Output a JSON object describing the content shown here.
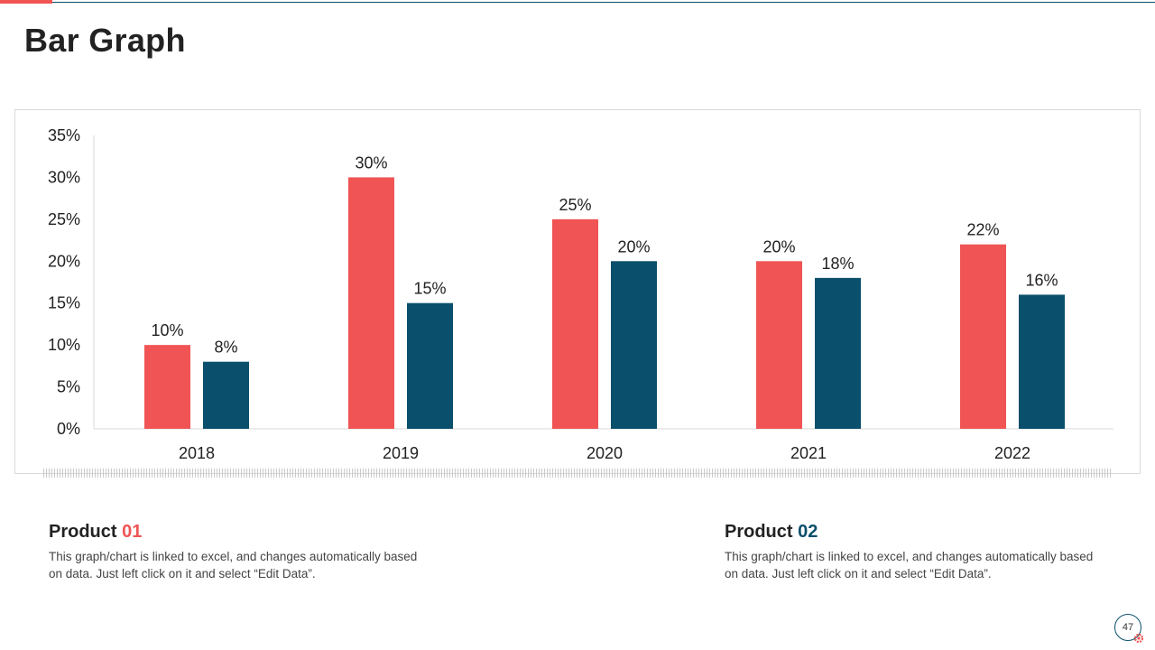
{
  "slide": {
    "title": "Bar Graph",
    "page_number": "47"
  },
  "products": [
    {
      "label": "Product ",
      "number": "01",
      "text": "This graph/chart is linked to excel, and changes automatically based on data. Just left click on it and select “Edit Data”."
    },
    {
      "label": "Product ",
      "number": "02",
      "text": "This graph/chart is linked to excel, and changes automatically based on data. Just left click on it and select “Edit Data”."
    }
  ],
  "colors": {
    "accent": "#f05454",
    "primary": "#0a4f6b"
  },
  "chart_data": {
    "type": "bar",
    "title": "",
    "xlabel": "",
    "ylabel": "",
    "categories": [
      "2018",
      "2019",
      "2020",
      "2021",
      "2022"
    ],
    "series": [
      {
        "values": [
          10,
          30,
          25,
          20,
          22
        ],
        "color": "#f05454"
      },
      {
        "values": [
          8,
          15,
          20,
          18,
          16
        ],
        "color": "#0a4f6b"
      }
    ],
    "ylim": [
      0,
      35
    ],
    "yticks": [
      0,
      5,
      10,
      15,
      20,
      25,
      30,
      35
    ],
    "tick_suffix": "%",
    "data_labels": true,
    "grid": false,
    "legend": "none"
  }
}
